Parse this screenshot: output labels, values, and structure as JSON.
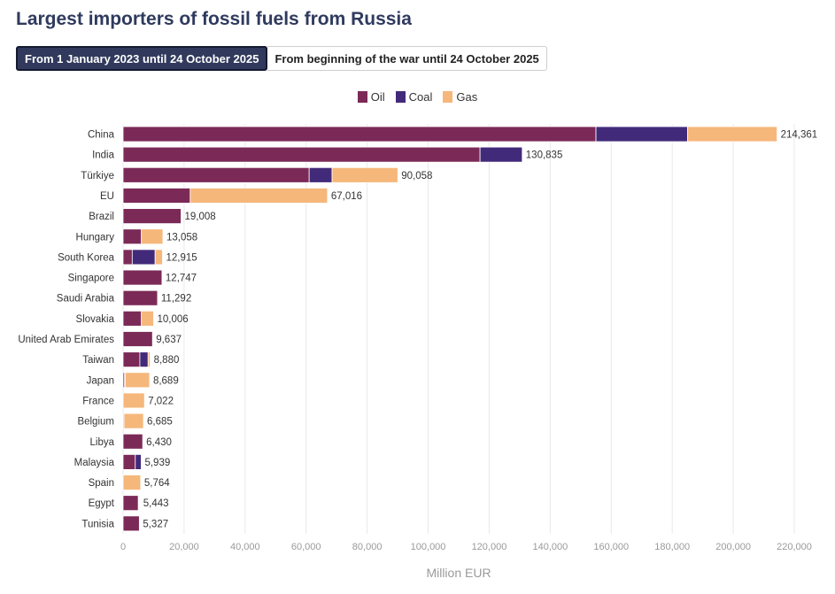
{
  "title": "Largest importers of fossil fuels from Russia",
  "tabs": [
    {
      "label": "From 1 January 2023 until 24 October 2025",
      "active": true
    },
    {
      "label": "From beginning of the war until 24 October 2025",
      "active": false
    }
  ],
  "colors": {
    "Oil": "#7b2a57",
    "Coal": "#422a7a",
    "Gas": "#f6b77b",
    "grid": "#e8e8e8",
    "tick": "#9a9a9a"
  },
  "chart_data": {
    "type": "bar",
    "orientation": "horizontal",
    "stacked": true,
    "categories": [
      "China",
      "India",
      "Türkiye",
      "EU",
      "Brazil",
      "Hungary",
      "South Korea",
      "Singapore",
      "Saudi Arabia",
      "Slovakia",
      "United Arab Emirates",
      "Taiwan",
      "Japan",
      "France",
      "Belgium",
      "Libya",
      "Malaysia",
      "Spain",
      "Egypt",
      "Tunisia"
    ],
    "series": [
      {
        "name": "Oil",
        "values": [
          155000,
          117000,
          61000,
          22000,
          19008,
          6000,
          3000,
          12747,
          11292,
          6000,
          9637,
          5500,
          500,
          0,
          300,
          6430,
          4000,
          0,
          5000,
          5327
        ]
      },
      {
        "name": "Coal",
        "values": [
          30000,
          13835,
          7500,
          0,
          0,
          0,
          7500,
          0,
          0,
          0,
          0,
          2700,
          200,
          0,
          0,
          0,
          1939,
          0,
          200,
          0
        ]
      },
      {
        "name": "Gas",
        "values": [
          29361,
          0,
          21558,
          45016,
          0,
          7058,
          2415,
          0,
          0,
          4006,
          0,
          680,
          7989,
          7022,
          6385,
          0,
          0,
          5764,
          243,
          0
        ]
      }
    ],
    "totals": [
      "214,361",
      "130,835",
      "90,058",
      "67,016",
      "19,008",
      "13,058",
      "12,915",
      "12,747",
      "11,292",
      "10,006",
      "9,637",
      "8,880",
      "8,689",
      "7,022",
      "6,685",
      "6,430",
      "5,939",
      "5,764",
      "5,443",
      "5,327"
    ],
    "xlabel": "Million EUR",
    "xlim": [
      0,
      220000
    ],
    "xticks": [
      0,
      20000,
      40000,
      60000,
      80000,
      100000,
      120000,
      140000,
      160000,
      180000,
      200000,
      220000
    ],
    "xtick_labels": [
      "0",
      "20,000",
      "40,000",
      "60,000",
      "80,000",
      "100,000",
      "120,000",
      "140,000",
      "160,000",
      "180,000",
      "200,000",
      "220,000"
    ],
    "grid": true,
    "legend_position": "top-center"
  }
}
